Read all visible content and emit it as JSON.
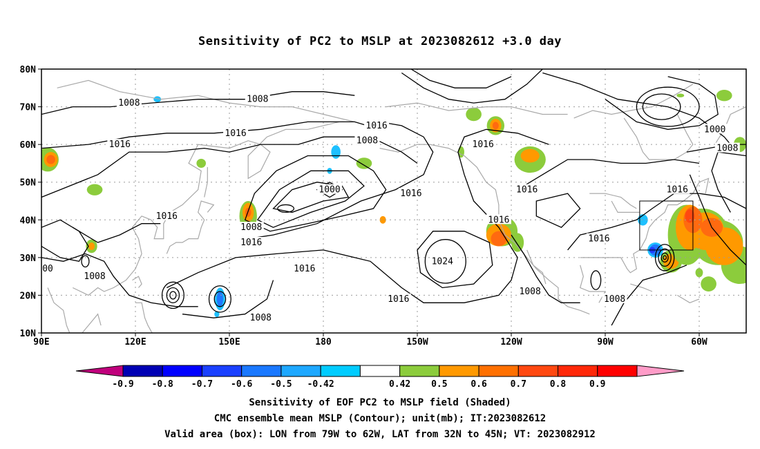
{
  "title": "Sensitivity of PC2 to MSLP at 2023082612 +3.0 day",
  "map": {
    "lat_labels": [
      "80N",
      "70N",
      "60N",
      "50N",
      "40N",
      "30N",
      "20N",
      "10N"
    ],
    "lon_labels": [
      "90E",
      "120E",
      "150E",
      "180",
      "150W",
      "120W",
      "90W",
      "60W"
    ],
    "contour_labels": [
      {
        "text": "1008",
        "lon": 118,
        "lat": 71
      },
      {
        "text": "1008",
        "lon": 159,
        "lat": 72
      },
      {
        "text": "1016",
        "lon": 152,
        "lat": 63
      },
      {
        "text": "1016",
        "lon": 115,
        "lat": 60
      },
      {
        "text": "1016",
        "lon": -163,
        "lat": 65
      },
      {
        "text": "1008",
        "lon": -166,
        "lat": 61
      },
      {
        "text": "1016",
        "lon": -129,
        "lat": 60
      },
      {
        "text": "1000",
        "lon": -55,
        "lat": 64
      },
      {
        "text": "1008",
        "lon": -51,
        "lat": 59
      },
      {
        "text": "1000",
        "lon": -178,
        "lat": 48
      },
      {
        "text": "1016",
        "lon": -152,
        "lat": 47
      },
      {
        "text": "1016",
        "lon": -115,
        "lat": 48
      },
      {
        "text": "1016",
        "lon": -67,
        "lat": 48
      },
      {
        "text": "1016",
        "lon": 130,
        "lat": 41
      },
      {
        "text": "1008",
        "lon": 157,
        "lat": 38
      },
      {
        "text": "1016",
        "lon": 157,
        "lat": 34
      },
      {
        "text": "1016",
        "lon": -124,
        "lat": 40
      },
      {
        "text": "1016",
        "lon": -92,
        "lat": 35
      },
      {
        "text": "1024",
        "lon": -142,
        "lat": 29
      },
      {
        "text": "1016",
        "lon": 174,
        "lat": 27
      },
      {
        "text": "1008",
        "lon": 107,
        "lat": 25
      },
      {
        "text": "00",
        "lon": 92,
        "lat": 27
      },
      {
        "text": "1016",
        "lon": -156,
        "lat": 19
      },
      {
        "text": "1008",
        "lon": -114,
        "lat": 21
      },
      {
        "text": "1008",
        "lon": -87,
        "lat": 19
      },
      {
        "text": "1008",
        "lon": 160,
        "lat": 14
      }
    ],
    "valid_box": {
      "lon_from": -79,
      "lon_to": -62,
      "lat_from": 32,
      "lat_to": 45
    },
    "colors": {
      "contour": "#000000",
      "coast": "#a8a8a8",
      "grid": "#9a9a9a",
      "pos_042_05": "#8ccc3c",
      "pos_05_06": "#ff9900",
      "pos_06_07": "#ff6a10",
      "pos_07_08": "#ff4810",
      "neg_05_042": "#1ec0ff",
      "neg_06_05": "#1e78ff",
      "neg_07_06": "#1e3cff"
    }
  },
  "colorbar": {
    "labels": [
      "-0.9",
      "-0.8",
      "-0.7",
      "-0.6",
      "-0.5",
      "-0.42",
      "0.42",
      "0.5",
      "0.6",
      "0.7",
      "0.8",
      "0.9"
    ],
    "colors": [
      "#c0007c",
      "#0000b4",
      "#0000ff",
      "#1a40ff",
      "#1a78ff",
      "#1ea8ff",
      "#00ccff",
      "#ffffff",
      "#8ccc3c",
      "#ff9900",
      "#ff7000",
      "#ff4810",
      "#ff2808",
      "#ff0000",
      "#ff9cc8"
    ]
  },
  "caption": {
    "line1": "Sensitivity of EOF PC2 to MSLP field (Shaded)",
    "line2": "CMC ensemble mean MSLP (Contour); unit(mb); IT:2023082612",
    "line3": "Valid area (box): LON from 79W to 62W, LAT from 32N to 45N; VT: 2023082912"
  }
}
